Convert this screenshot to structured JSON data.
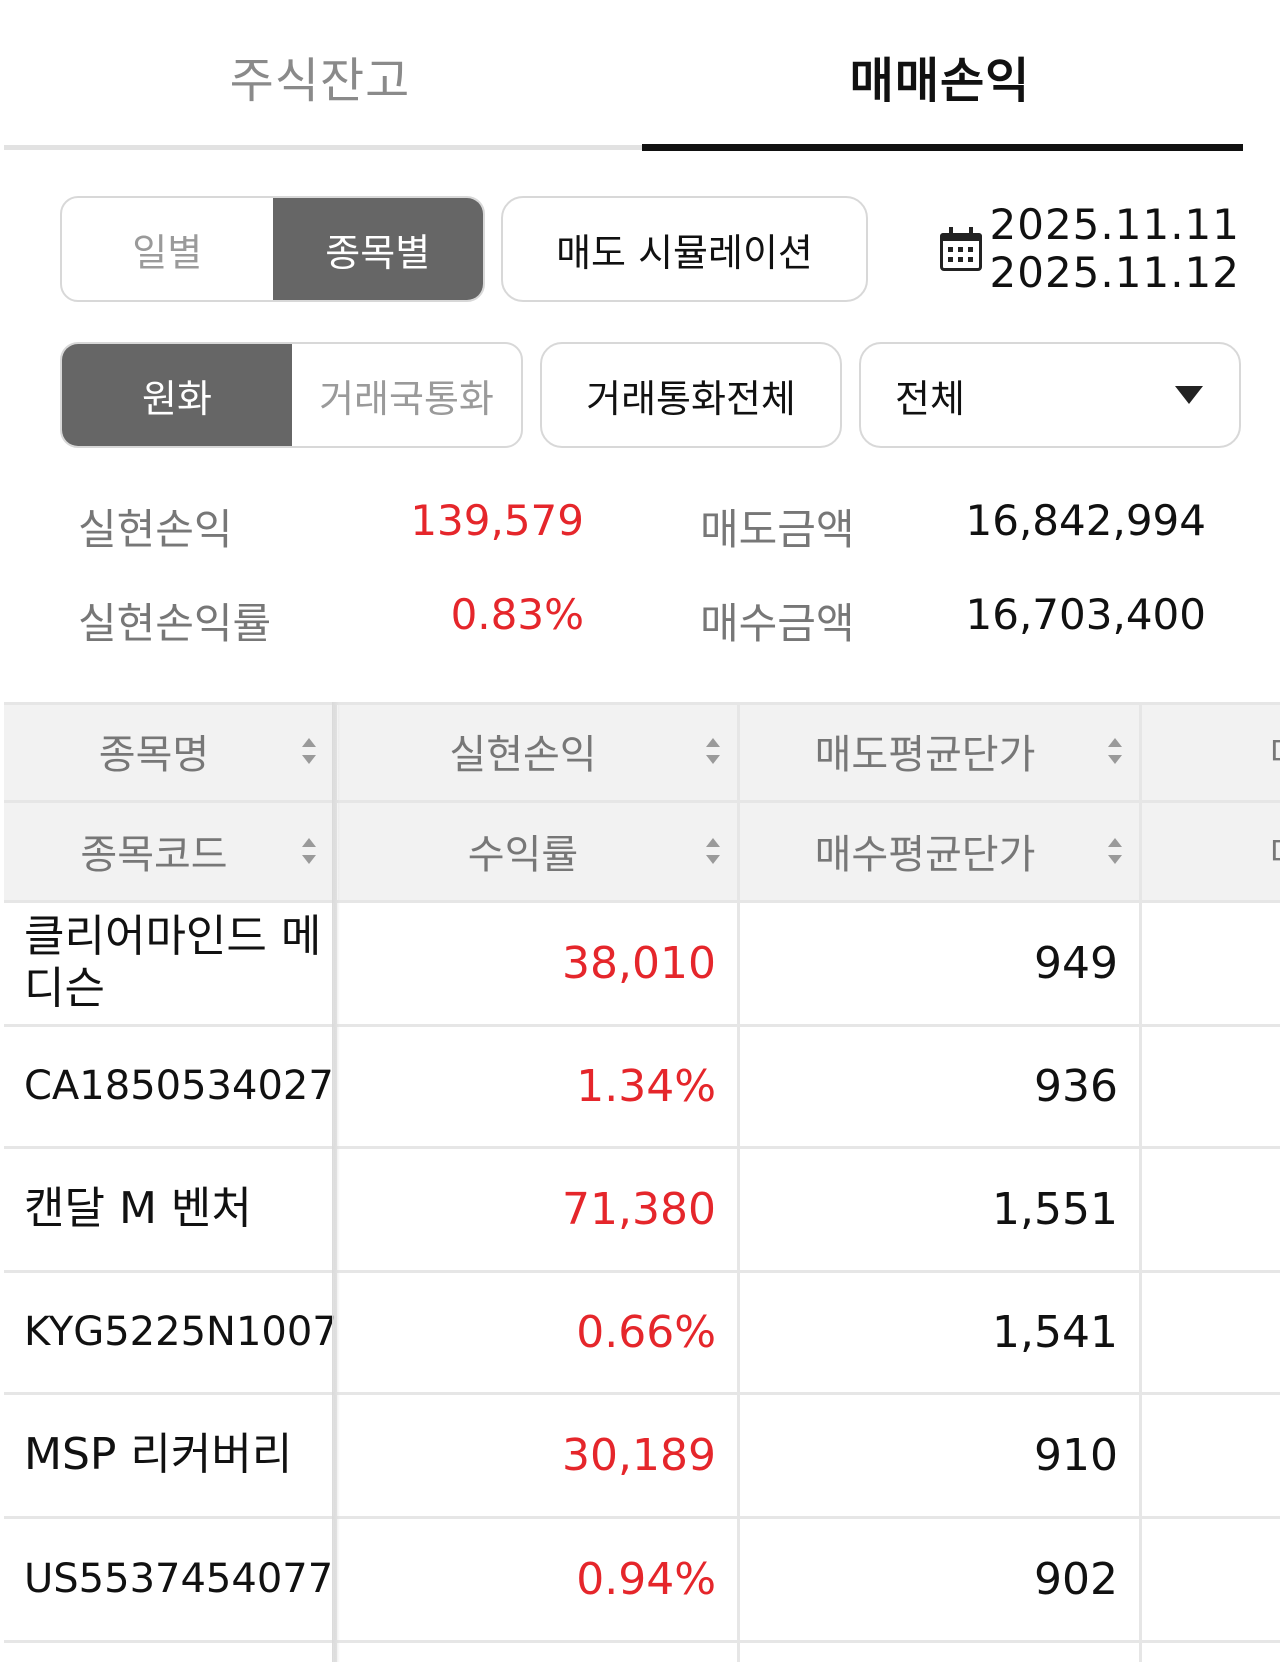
{
  "tabs": [
    {
      "label": "주식잔고",
      "active": false
    },
    {
      "label": "매매손익",
      "active": true
    }
  ],
  "period_toggle": {
    "options": [
      {
        "label": "일별",
        "active": false
      },
      {
        "label": "종목별",
        "active": true
      }
    ]
  },
  "sell_simulation_label": "매도 시뮬레이션",
  "date_range": {
    "start": "2025.11.11",
    "end": "2025.11.12",
    "icon": "calendar-icon"
  },
  "currency_toggle": {
    "options": [
      {
        "label": "원화",
        "active": true
      },
      {
        "label": "거래국통화",
        "active": false
      }
    ]
  },
  "trade_currency_all_label": "거래통화전체",
  "filter_select": {
    "value": "전체"
  },
  "summary": {
    "realized_pl_label": "실현손익",
    "realized_pl_value": "139,579",
    "realized_rate_label": "실현손익률",
    "realized_rate_value": "0.83%",
    "sell_amount_label": "매도금액",
    "sell_amount_value": "16,842,994",
    "buy_amount_label": "매수금액",
    "buy_amount_value": "16,703,400"
  },
  "table": {
    "headers_row1": [
      "종목명",
      "실현손익",
      "매도평균단가",
      "매"
    ],
    "headers_row2": [
      "종목코드",
      "수익률",
      "매수평균단가",
      "매"
    ],
    "rows": [
      {
        "name": "클리어마인드 메디슨",
        "code": "CA1850534027",
        "pl": "38,010",
        "rate": "1.34%",
        "sell_avg": "949",
        "buy_avg": "936"
      },
      {
        "name": "캔달 M 벤처",
        "code": "KYG5225N1007",
        "pl": "71,380",
        "rate": "0.66%",
        "sell_avg": "1,551",
        "buy_avg": "1,541"
      },
      {
        "name": "MSP 리커버리",
        "code": "US5537454077",
        "pl": "30,189",
        "rate": "0.94%",
        "sell_avg": "910",
        "buy_avg": "902"
      }
    ]
  },
  "colors": {
    "profit": "#e5262b",
    "active_segment": "#666666"
  }
}
